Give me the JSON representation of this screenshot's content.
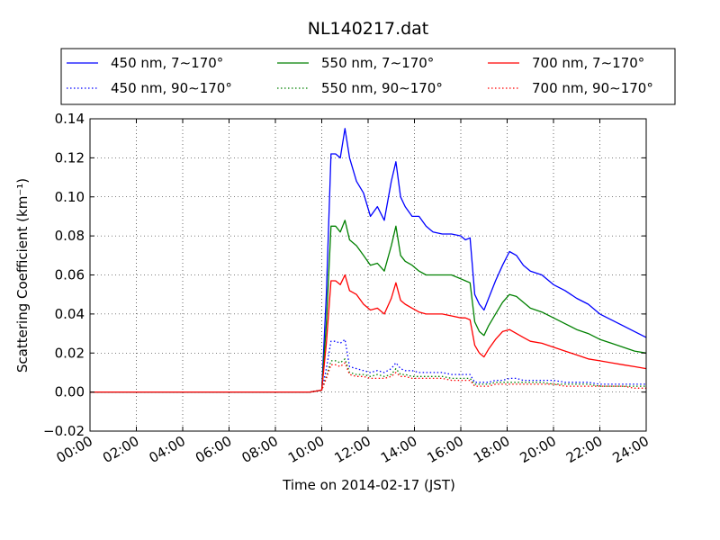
{
  "chart_data": {
    "type": "line",
    "title": "NL140217.dat",
    "xlabel": "Time on 2014-02-17 (JST)",
    "ylabel": "Scattering Coefficient (km⁻¹)",
    "xlim": [
      0,
      24
    ],
    "ylim": [
      -0.02,
      0.14
    ],
    "x_ticks": [
      0,
      2,
      4,
      6,
      8,
      10,
      12,
      14,
      16,
      18,
      20,
      22,
      24
    ],
    "x_tick_labels": [
      "00:00",
      "02:00",
      "04:00",
      "06:00",
      "08:00",
      "10:00",
      "12:00",
      "14:00",
      "16:00",
      "18:00",
      "20:00",
      "22:00",
      "24:00"
    ],
    "y_ticks": [
      -0.02,
      0.0,
      0.02,
      0.04,
      0.06,
      0.08,
      0.1,
      0.12,
      0.14
    ],
    "y_tick_labels": [
      "−0.02",
      "0.00",
      "0.02",
      "0.04",
      "0.06",
      "0.08",
      "0.10",
      "0.12",
      "0.14"
    ],
    "grid": true,
    "legend_placement": "top, above plot, 3 columns",
    "x": [
      0,
      2,
      4,
      6,
      8,
      9.5,
      10.0,
      10.2,
      10.4,
      10.6,
      10.8,
      11.0,
      11.2,
      11.5,
      11.8,
      12.1,
      12.4,
      12.7,
      13.0,
      13.2,
      13.4,
      13.6,
      13.9,
      14.2,
      14.5,
      14.8,
      15.2,
      15.6,
      16.0,
      16.2,
      16.4,
      16.6,
      16.8,
      17.0,
      17.2,
      17.5,
      17.8,
      18.1,
      18.4,
      18.7,
      19.0,
      19.5,
      20.0,
      20.5,
      21.0,
      21.5,
      22.0,
      22.5,
      23.0,
      23.5,
      24.0
    ],
    "series": [
      {
        "name": "450 nm, 7∼170°",
        "color": "#0000ff",
        "style": "solid",
        "values": [
          0,
          0,
          0,
          0,
          0,
          0,
          0.001,
          0.05,
          0.122,
          0.122,
          0.12,
          0.135,
          0.12,
          0.108,
          0.102,
          0.09,
          0.095,
          0.088,
          0.108,
          0.118,
          0.1,
          0.095,
          0.09,
          0.09,
          0.085,
          0.082,
          0.081,
          0.081,
          0.08,
          0.078,
          0.079,
          0.05,
          0.045,
          0.042,
          0.048,
          0.057,
          0.065,
          0.072,
          0.07,
          0.065,
          0.062,
          0.06,
          0.055,
          0.052,
          0.048,
          0.045,
          0.04,
          0.037,
          0.034,
          0.031,
          0.028
        ]
      },
      {
        "name": "550 nm, 7∼170°",
        "color": "#008000",
        "style": "solid",
        "values": [
          0,
          0,
          0,
          0,
          0,
          0,
          0.001,
          0.035,
          0.085,
          0.085,
          0.082,
          0.088,
          0.078,
          0.075,
          0.07,
          0.065,
          0.066,
          0.062,
          0.075,
          0.085,
          0.07,
          0.067,
          0.065,
          0.062,
          0.06,
          0.06,
          0.06,
          0.06,
          0.058,
          0.057,
          0.056,
          0.036,
          0.031,
          0.029,
          0.034,
          0.04,
          0.046,
          0.05,
          0.049,
          0.046,
          0.043,
          0.041,
          0.038,
          0.035,
          0.032,
          0.03,
          0.027,
          0.025,
          0.023,
          0.021,
          0.02
        ]
      },
      {
        "name": "700 nm, 7∼170°",
        "color": "#ff0000",
        "style": "solid",
        "values": [
          0,
          0,
          0,
          0,
          0,
          0,
          0.001,
          0.025,
          0.057,
          0.057,
          0.055,
          0.06,
          0.052,
          0.05,
          0.045,
          0.042,
          0.043,
          0.04,
          0.048,
          0.056,
          0.047,
          0.045,
          0.043,
          0.041,
          0.04,
          0.04,
          0.04,
          0.039,
          0.038,
          0.038,
          0.037,
          0.024,
          0.02,
          0.018,
          0.022,
          0.027,
          0.031,
          0.032,
          0.03,
          0.028,
          0.026,
          0.025,
          0.023,
          0.021,
          0.019,
          0.017,
          0.016,
          0.015,
          0.014,
          0.013,
          0.012
        ]
      },
      {
        "name": "450 nm, 90∼170°",
        "color": "#0000ff",
        "style": "dotted",
        "values": [
          0,
          0,
          0,
          0,
          0,
          0,
          0.001,
          0.012,
          0.026,
          0.026,
          0.025,
          0.027,
          0.013,
          0.012,
          0.011,
          0.01,
          0.011,
          0.01,
          0.012,
          0.015,
          0.012,
          0.011,
          0.011,
          0.01,
          0.01,
          0.01,
          0.01,
          0.009,
          0.009,
          0.009,
          0.009,
          0.005,
          0.005,
          0.005,
          0.005,
          0.006,
          0.006,
          0.007,
          0.007,
          0.006,
          0.006,
          0.006,
          0.006,
          0.005,
          0.005,
          0.005,
          0.004,
          0.004,
          0.004,
          0.004,
          0.004
        ]
      },
      {
        "name": "550 nm, 90∼170°",
        "color": "#008000",
        "style": "dotted",
        "values": [
          0,
          0,
          0,
          0,
          0,
          0,
          0.001,
          0.008,
          0.016,
          0.016,
          0.015,
          0.017,
          0.01,
          0.009,
          0.009,
          0.008,
          0.009,
          0.008,
          0.009,
          0.012,
          0.009,
          0.009,
          0.008,
          0.008,
          0.008,
          0.008,
          0.008,
          0.007,
          0.007,
          0.007,
          0.007,
          0.004,
          0.004,
          0.004,
          0.004,
          0.005,
          0.005,
          0.005,
          0.005,
          0.005,
          0.005,
          0.005,
          0.004,
          0.004,
          0.004,
          0.004,
          0.003,
          0.003,
          0.003,
          0.003,
          0.003
        ]
      },
      {
        "name": "700 nm, 90∼170°",
        "color": "#ff0000",
        "style": "dotted",
        "values": [
          0,
          0,
          0,
          0,
          0,
          0,
          0.001,
          0.007,
          0.014,
          0.014,
          0.013,
          0.015,
          0.009,
          0.008,
          0.008,
          0.007,
          0.007,
          0.007,
          0.008,
          0.01,
          0.008,
          0.008,
          0.007,
          0.007,
          0.007,
          0.007,
          0.007,
          0.006,
          0.006,
          0.006,
          0.006,
          0.003,
          0.003,
          0.003,
          0.003,
          0.004,
          0.004,
          0.004,
          0.004,
          0.004,
          0.004,
          0.004,
          0.004,
          0.003,
          0.003,
          0.003,
          0.003,
          0.003,
          0.003,
          0.002,
          0.002
        ]
      }
    ]
  }
}
